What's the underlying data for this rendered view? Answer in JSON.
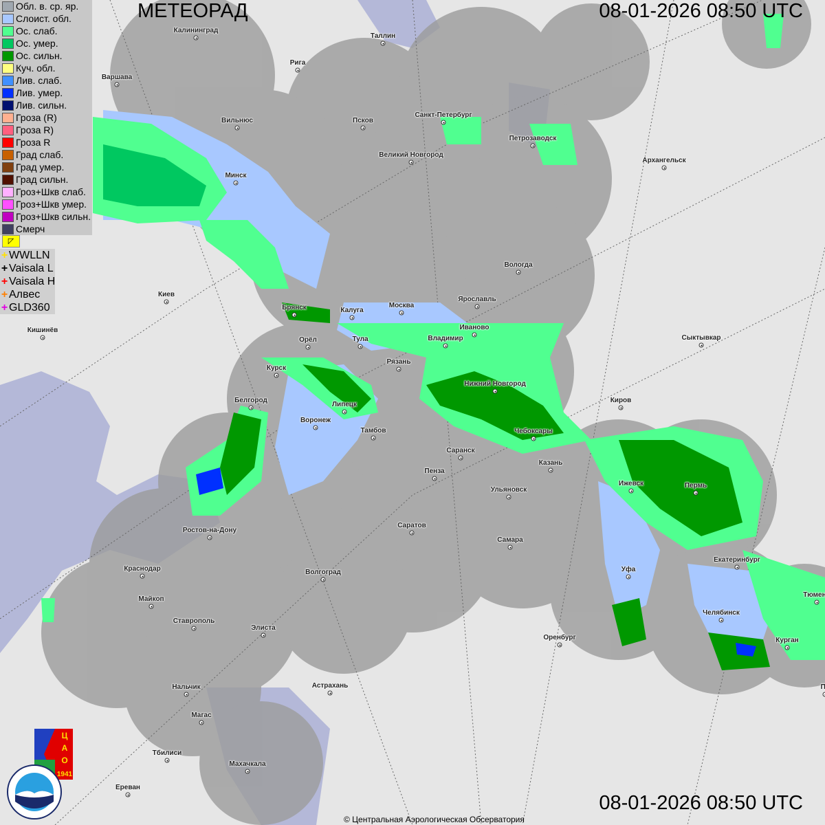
{
  "header": {
    "title": "МЕТЕОРАД",
    "timestamp_top": "08-01-2026  08:50 UTC",
    "timestamp_bottom": "08-01-2026  08:50 UTC"
  },
  "legend": [
    {
      "label": "Обл. в. ср. яр.",
      "color": "#a0a8b0"
    },
    {
      "label": "Слоист. обл.",
      "color": "#a8c8ff"
    },
    {
      "label": "Ос. слаб.",
      "color": "#50ff90"
    },
    {
      "label": "Ос. умер.",
      "color": "#00c860"
    },
    {
      "label": "Ос. сильн.",
      "color": "#009800"
    },
    {
      "label": "Куч. обл.",
      "color": "#ffff80"
    },
    {
      "label": "Лив. слаб.",
      "color": "#4090ff"
    },
    {
      "label": "Лив. умер.",
      "color": "#0030ff"
    },
    {
      "label": "Лив. сильн.",
      "color": "#001070"
    },
    {
      "label": "Гроза (R)",
      "color": "#ffb090"
    },
    {
      "label": "Гроза R)",
      "color": "#ff6080"
    },
    {
      "label": "Гроза R",
      "color": "#ff0000"
    },
    {
      "label": "Град слаб.",
      "color": "#c86000"
    },
    {
      "label": "Град умер.",
      "color": "#804010"
    },
    {
      "label": "Град сильн.",
      "color": "#501000"
    },
    {
      "label": "Гроз+Шкв слаб.",
      "color": "#ffb0ff"
    },
    {
      "label": "Гроз+Шкв умер.",
      "color": "#ff50ff"
    },
    {
      "label": "Гроз+Шкв сильн.",
      "color": "#c000c0"
    },
    {
      "label": "Смерч",
      "color": "#404060"
    }
  ],
  "lightning": [
    {
      "label": "WWLLN",
      "color": "#ffe000"
    },
    {
      "label": "Vaisala L",
      "color": "#000000"
    },
    {
      "label": "Vaisala H",
      "color": "#ff0000"
    },
    {
      "label": "Алвес",
      "color": "#ff8000"
    },
    {
      "label": "GLD360",
      "color": "#e000e0"
    }
  ],
  "cities": [
    {
      "name": "Калининград"
    },
    {
      "name": "Таллин"
    },
    {
      "name": "Рига"
    },
    {
      "name": "Варшава"
    },
    {
      "name": "Санкт-Петербург"
    },
    {
      "name": "Вильнюс"
    },
    {
      "name": "Псков"
    },
    {
      "name": "Петрозаводск"
    },
    {
      "name": "Великий Новгород"
    },
    {
      "name": "Архангельск"
    },
    {
      "name": "Минск"
    },
    {
      "name": "Вологда"
    },
    {
      "name": "Киев"
    },
    {
      "name": "Ярославль"
    },
    {
      "name": "Москва"
    },
    {
      "name": "Брянск"
    },
    {
      "name": "Калуга"
    },
    {
      "name": "Иваново"
    },
    {
      "name": "Кишинёв"
    },
    {
      "name": "Орёл"
    },
    {
      "name": "Тула"
    },
    {
      "name": "Владимир"
    },
    {
      "name": "Сыктывкар"
    },
    {
      "name": "Рязань"
    },
    {
      "name": "Курск"
    },
    {
      "name": "Нижний Новгород"
    },
    {
      "name": "Киров"
    },
    {
      "name": "Белгород"
    },
    {
      "name": "Липецк"
    },
    {
      "name": "Воронеж"
    },
    {
      "name": "Тамбов"
    },
    {
      "name": "Чебоксары"
    },
    {
      "name": "Саранск"
    },
    {
      "name": "Казань"
    },
    {
      "name": "Пенза"
    },
    {
      "name": "Ижевск"
    },
    {
      "name": "Пермь"
    },
    {
      "name": "Ульяновск"
    },
    {
      "name": "Саратов"
    },
    {
      "name": "Ростов-на-Дону"
    },
    {
      "name": "Самара"
    },
    {
      "name": "Екатеринбург"
    },
    {
      "name": "Краснодар"
    },
    {
      "name": "Уфа"
    },
    {
      "name": "Волгоград"
    },
    {
      "name": "Тюмень"
    },
    {
      "name": "Майкоп"
    },
    {
      "name": "Челябинск"
    },
    {
      "name": "Ставрополь"
    },
    {
      "name": "Элиста"
    },
    {
      "name": "Оренбург"
    },
    {
      "name": "Курган"
    },
    {
      "name": "Астрахань"
    },
    {
      "name": "Пе"
    },
    {
      "name": "Нальчик"
    },
    {
      "name": "Магас"
    },
    {
      "name": "Тбилиси"
    },
    {
      "name": "Махачкала"
    },
    {
      "name": "Ереван"
    }
  ],
  "logos": {
    "cao": "ЦАО 1941",
    "roshydromet": "РОСГИДРОМЕТ ROSHYDROMET"
  },
  "copyright": "© Центральная Аэрологическая Обсерватория"
}
